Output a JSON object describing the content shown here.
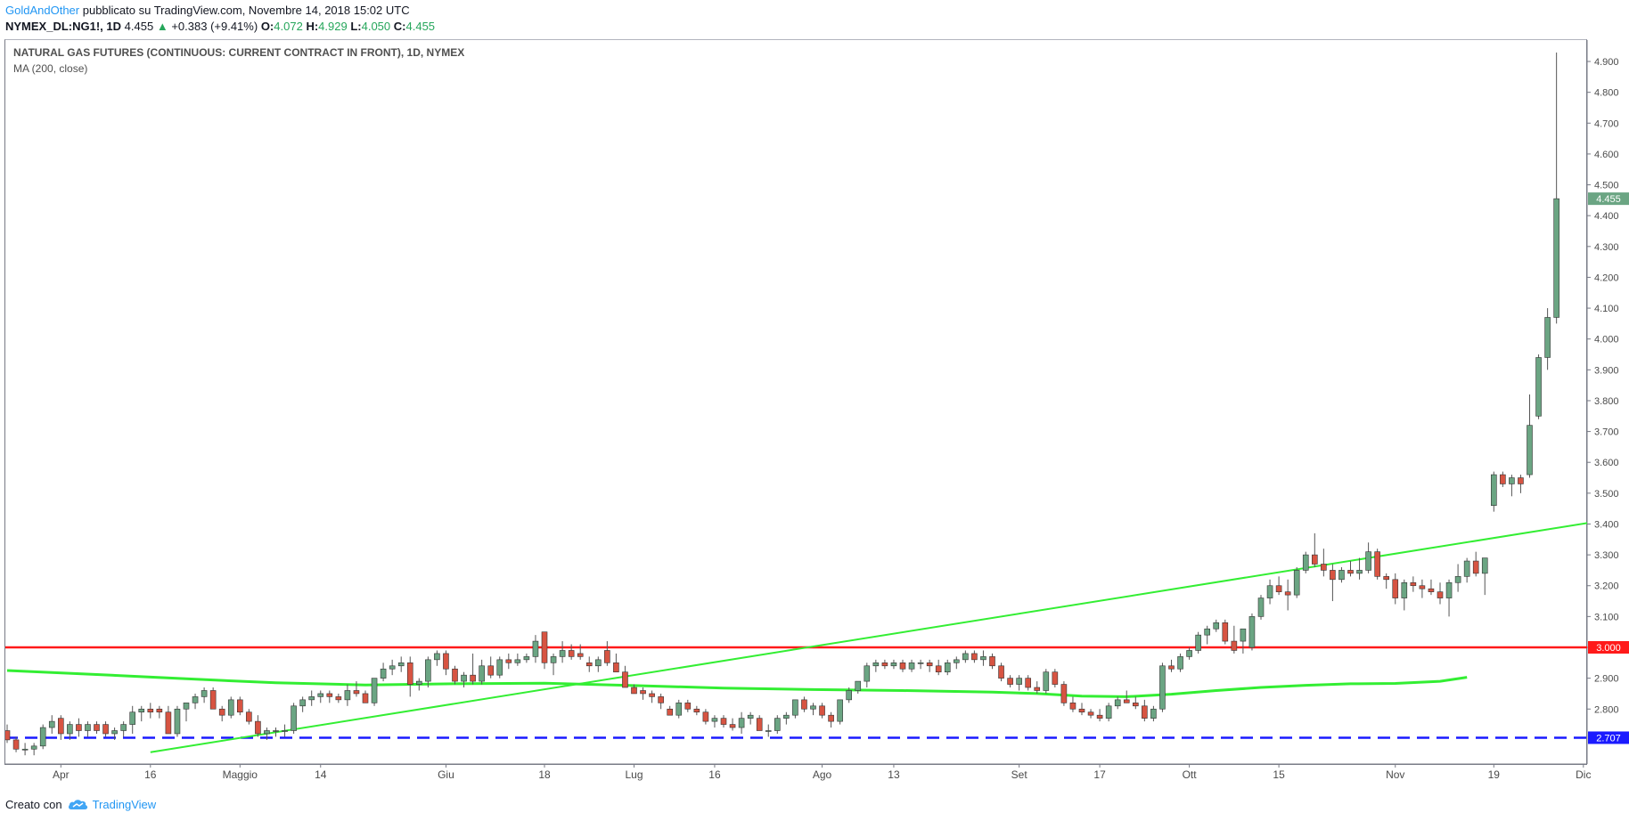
{
  "header": {
    "author": "GoldAndOther",
    "published_text": "pubblicato su TradingView.com, Novembre 14, 2018 15:02 UTC",
    "symbol": "NYMEX_DL:NG1!, 1D",
    "last": "4.455",
    "change": "+0.383 (+9.41%)",
    "o_label": "O:",
    "o_value": "4.072",
    "h_label": "H:",
    "h_value": "4.929",
    "l_label": "L:",
    "l_value": "4.050",
    "c_label": "C:",
    "c_value": "4.455"
  },
  "legend": {
    "title": "NATURAL GAS FUTURES (CONTINUOUS: CURRENT CONTRACT IN FRONT), 1D, NYMEX",
    "indicator": "MA (200, close)"
  },
  "footer": {
    "created_with": "Creato con",
    "brand": "TradingView"
  },
  "colors": {
    "up": "#6ba583",
    "down": "#d75442",
    "ma": "#33ee33",
    "trendline": "#33ee33",
    "resistance": "#ff1a1a",
    "support": "#1a1aff",
    "last_price_badge": "#6ba583",
    "axis_text": "#4a4a4a"
  },
  "chart_data": {
    "type": "candlestick",
    "title": "NATURAL GAS FUTURES (CONTINUOUS: CURRENT CONTRACT IN FRONT), 1D, NYMEX",
    "ylim": [
      2.65,
      4.95
    ],
    "y_ticks": [
      "2.800",
      "2.900",
      "3.000",
      "3.100",
      "3.200",
      "3.300",
      "3.400",
      "3.500",
      "3.600",
      "3.700",
      "3.800",
      "3.900",
      "4.000",
      "4.100",
      "4.200",
      "4.300",
      "4.400",
      "4.500",
      "4.600",
      "4.700",
      "4.800",
      "4.900"
    ],
    "x_ticks": [
      {
        "label": "Apr",
        "index": 6
      },
      {
        "label": "16",
        "index": 16
      },
      {
        "label": "Maggio",
        "index": 26
      },
      {
        "label": "14",
        "index": 35
      },
      {
        "label": "Giu",
        "index": 49
      },
      {
        "label": "18",
        "index": 60
      },
      {
        "label": "Lug",
        "index": 70
      },
      {
        "label": "16",
        "index": 79
      },
      {
        "label": "Ago",
        "index": 91
      },
      {
        "label": "13",
        "index": 99
      },
      {
        "label": "Set",
        "index": 113
      },
      {
        "label": "17",
        "index": 122
      },
      {
        "label": "Ott",
        "index": 132
      },
      {
        "label": "15",
        "index": 142
      },
      {
        "label": "Nov",
        "index": 155
      },
      {
        "label": "19",
        "index": 166
      },
      {
        "label": "Dic",
        "index": 176
      }
    ],
    "horizontal_lines": [
      {
        "price": 3.0,
        "label": "3.000",
        "style": "solid",
        "color": "#ff1a1a"
      },
      {
        "price": 2.707,
        "label": "2.707",
        "style": "dashed",
        "color": "#1a1aff"
      }
    ],
    "last_price": {
      "price": 4.455,
      "label": "4.455"
    },
    "trendline": {
      "from": {
        "index": 16,
        "price": 2.66
      },
      "to": {
        "index": 179,
        "price": 3.415
      }
    },
    "ma_200": [
      [
        0,
        2.925
      ],
      [
        10,
        2.912
      ],
      [
        20,
        2.898
      ],
      [
        30,
        2.885
      ],
      [
        40,
        2.878
      ],
      [
        50,
        2.882
      ],
      [
        60,
        2.884
      ],
      [
        70,
        2.876
      ],
      [
        80,
        2.868
      ],
      [
        90,
        2.863
      ],
      [
        100,
        2.86
      ],
      [
        110,
        2.855
      ],
      [
        115,
        2.85
      ],
      [
        120,
        2.842
      ],
      [
        125,
        2.84
      ],
      [
        130,
        2.848
      ],
      [
        135,
        2.86
      ],
      [
        140,
        2.87
      ],
      [
        145,
        2.877
      ],
      [
        150,
        2.882
      ],
      [
        155,
        2.883
      ],
      [
        160,
        2.89
      ],
      [
        163,
        2.903
      ]
    ],
    "ohlc": [
      [
        2.73,
        2.75,
        2.69,
        2.7
      ],
      [
        2.7,
        2.71,
        2.66,
        2.67
      ],
      [
        2.67,
        2.69,
        2.65,
        2.67
      ],
      [
        2.67,
        2.69,
        2.65,
        2.68
      ],
      [
        2.68,
        2.75,
        2.67,
        2.74
      ],
      [
        2.74,
        2.78,
        2.72,
        2.76
      ],
      [
        2.77,
        2.78,
        2.7,
        2.72
      ],
      [
        2.72,
        2.76,
        2.7,
        2.75
      ],
      [
        2.75,
        2.77,
        2.71,
        2.73
      ],
      [
        2.73,
        2.76,
        2.71,
        2.75
      ],
      [
        2.75,
        2.76,
        2.72,
        2.73
      ],
      [
        2.75,
        2.76,
        2.71,
        2.72
      ],
      [
        2.72,
        2.74,
        2.7,
        2.73
      ],
      [
        2.73,
        2.76,
        2.71,
        2.75
      ],
      [
        2.75,
        2.81,
        2.72,
        2.79
      ],
      [
        2.79,
        2.81,
        2.76,
        2.8
      ],
      [
        2.8,
        2.82,
        2.77,
        2.79
      ],
      [
        2.8,
        2.81,
        2.77,
        2.79
      ],
      [
        2.79,
        2.81,
        2.72,
        2.72
      ],
      [
        2.72,
        2.81,
        2.71,
        2.8
      ],
      [
        2.8,
        2.82,
        2.76,
        2.82
      ],
      [
        2.82,
        2.85,
        2.8,
        2.84
      ],
      [
        2.84,
        2.87,
        2.82,
        2.86
      ],
      [
        2.86,
        2.87,
        2.8,
        2.8
      ],
      [
        2.8,
        2.81,
        2.76,
        2.78
      ],
      [
        2.78,
        2.84,
        2.77,
        2.83
      ],
      [
        2.83,
        2.84,
        2.78,
        2.79
      ],
      [
        2.79,
        2.8,
        2.75,
        2.76
      ],
      [
        2.76,
        2.78,
        2.71,
        2.72
      ],
      [
        2.72,
        2.74,
        2.7,
        2.73
      ],
      [
        2.73,
        2.74,
        2.71,
        2.73
      ],
      [
        2.73,
        2.75,
        2.71,
        2.73
      ],
      [
        2.73,
        2.82,
        2.72,
        2.81
      ],
      [
        2.81,
        2.84,
        2.79,
        2.83
      ],
      [
        2.83,
        2.86,
        2.81,
        2.84
      ],
      [
        2.84,
        2.86,
        2.82,
        2.85
      ],
      [
        2.85,
        2.86,
        2.82,
        2.84
      ],
      [
        2.84,
        2.85,
        2.82,
        2.83
      ],
      [
        2.83,
        2.88,
        2.81,
        2.86
      ],
      [
        2.86,
        2.89,
        2.84,
        2.85
      ],
      [
        2.85,
        2.86,
        2.82,
        2.82
      ],
      [
        2.82,
        2.9,
        2.81,
        2.9
      ],
      [
        2.9,
        2.95,
        2.89,
        2.93
      ],
      [
        2.93,
        2.96,
        2.91,
        2.94
      ],
      [
        2.94,
        2.97,
        2.92,
        2.95
      ],
      [
        2.95,
        2.97,
        2.84,
        2.88
      ],
      [
        2.88,
        2.9,
        2.86,
        2.89
      ],
      [
        2.89,
        2.97,
        2.87,
        2.96
      ],
      [
        2.96,
        2.99,
        2.94,
        2.98
      ],
      [
        2.98,
        2.99,
        2.91,
        2.93
      ],
      [
        2.93,
        2.94,
        2.88,
        2.89
      ],
      [
        2.89,
        2.92,
        2.87,
        2.91
      ],
      [
        2.91,
        2.98,
        2.88,
        2.89
      ],
      [
        2.89,
        2.96,
        2.88,
        2.94
      ],
      [
        2.94,
        2.97,
        2.9,
        2.91
      ],
      [
        2.91,
        2.97,
        2.9,
        2.96
      ],
      [
        2.96,
        2.98,
        2.93,
        2.95
      ],
      [
        2.95,
        2.98,
        2.94,
        2.96
      ],
      [
        2.96,
        2.98,
        2.95,
        2.97
      ],
      [
        2.97,
        3.04,
        2.95,
        3.02
      ],
      [
        3.05,
        3.05,
        2.93,
        2.95
      ],
      [
        2.95,
        2.98,
        2.91,
        2.97
      ],
      [
        2.97,
        3.02,
        2.95,
        2.99
      ],
      [
        2.99,
        3.01,
        2.96,
        2.97
      ],
      [
        2.98,
        3.01,
        2.96,
        2.97
      ],
      [
        2.95,
        2.97,
        2.92,
        2.94
      ],
      [
        2.94,
        2.97,
        2.92,
        2.96
      ],
      [
        2.99,
        3.02,
        2.94,
        2.95
      ],
      [
        2.95,
        2.98,
        2.93,
        2.92
      ],
      [
        2.92,
        2.94,
        2.87,
        2.87
      ],
      [
        2.87,
        2.88,
        2.85,
        2.85
      ],
      [
        2.86,
        2.87,
        2.83,
        2.85
      ],
      [
        2.85,
        2.86,
        2.82,
        2.84
      ],
      [
        2.84,
        2.85,
        2.8,
        2.82
      ],
      [
        2.8,
        2.81,
        2.78,
        2.78
      ],
      [
        2.78,
        2.83,
        2.77,
        2.82
      ],
      [
        2.82,
        2.83,
        2.79,
        2.8
      ],
      [
        2.8,
        2.81,
        2.78,
        2.79
      ],
      [
        2.79,
        2.8,
        2.75,
        2.76
      ],
      [
        2.76,
        2.78,
        2.74,
        2.77
      ],
      [
        2.77,
        2.78,
        2.74,
        2.75
      ],
      [
        2.75,
        2.77,
        2.73,
        2.74
      ],
      [
        2.74,
        2.79,
        2.72,
        2.77
      ],
      [
        2.77,
        2.79,
        2.75,
        2.78
      ],
      [
        2.77,
        2.78,
        2.73,
        2.73
      ],
      [
        2.73,
        2.75,
        2.71,
        2.73
      ],
      [
        2.73,
        2.78,
        2.72,
        2.77
      ],
      [
        2.77,
        2.79,
        2.75,
        2.78
      ],
      [
        2.78,
        2.83,
        2.77,
        2.83
      ],
      [
        2.83,
        2.84,
        2.79,
        2.8
      ],
      [
        2.8,
        2.82,
        2.78,
        2.81
      ],
      [
        2.81,
        2.82,
        2.77,
        2.78
      ],
      [
        2.78,
        2.79,
        2.74,
        2.76
      ],
      [
        2.76,
        2.83,
        2.75,
        2.83
      ],
      [
        2.83,
        2.87,
        2.82,
        2.86
      ],
      [
        2.86,
        2.89,
        2.85,
        2.89
      ],
      [
        2.89,
        2.95,
        2.87,
        2.94
      ],
      [
        2.94,
        2.96,
        2.92,
        2.95
      ],
      [
        2.95,
        2.96,
        2.93,
        2.94
      ],
      [
        2.94,
        2.96,
        2.93,
        2.95
      ],
      [
        2.95,
        2.96,
        2.92,
        2.93
      ],
      [
        2.93,
        2.96,
        2.92,
        2.95
      ],
      [
        2.95,
        2.96,
        2.93,
        2.95
      ],
      [
        2.95,
        2.96,
        2.92,
        2.94
      ],
      [
        2.94,
        2.96,
        2.91,
        2.92
      ],
      [
        2.92,
        2.96,
        2.91,
        2.95
      ],
      [
        2.95,
        2.97,
        2.93,
        2.96
      ],
      [
        2.96,
        2.99,
        2.95,
        2.98
      ],
      [
        2.98,
        2.99,
        2.95,
        2.96
      ],
      [
        2.96,
        2.99,
        2.94,
        2.97
      ],
      [
        2.97,
        2.98,
        2.93,
        2.94
      ],
      [
        2.94,
        2.95,
        2.89,
        2.9
      ],
      [
        2.9,
        2.91,
        2.87,
        2.88
      ],
      [
        2.88,
        2.91,
        2.86,
        2.9
      ],
      [
        2.9,
        2.91,
        2.86,
        2.87
      ],
      [
        2.87,
        2.89,
        2.85,
        2.86
      ],
      [
        2.86,
        2.93,
        2.85,
        2.92
      ],
      [
        2.92,
        2.93,
        2.87,
        2.88
      ],
      [
        2.88,
        2.89,
        2.81,
        2.82
      ],
      [
        2.82,
        2.84,
        2.79,
        2.8
      ],
      [
        2.8,
        2.82,
        2.78,
        2.79
      ],
      [
        2.79,
        2.8,
        2.77,
        2.78
      ],
      [
        2.78,
        2.8,
        2.76,
        2.77
      ],
      [
        2.77,
        2.82,
        2.76,
        2.81
      ],
      [
        2.81,
        2.84,
        2.8,
        2.83
      ],
      [
        2.83,
        2.86,
        2.82,
        2.82
      ],
      [
        2.82,
        2.84,
        2.8,
        2.81
      ],
      [
        2.81,
        2.83,
        2.76,
        2.77
      ],
      [
        2.77,
        2.81,
        2.76,
        2.8
      ],
      [
        2.8,
        2.95,
        2.79,
        2.94
      ],
      [
        2.94,
        2.96,
        2.92,
        2.93
      ],
      [
        2.93,
        2.98,
        2.92,
        2.97
      ],
      [
        2.97,
        3.0,
        2.96,
        2.99
      ],
      [
        2.99,
        3.05,
        2.98,
        3.04
      ],
      [
        3.04,
        3.07,
        3.01,
        3.06
      ],
      [
        3.06,
        3.09,
        3.05,
        3.08
      ],
      [
        3.08,
        3.09,
        3.01,
        3.02
      ],
      [
        3.02,
        3.07,
        2.98,
        2.99
      ],
      [
        3.02,
        3.06,
        2.98,
        3.06
      ],
      [
        3.0,
        3.11,
        2.99,
        3.1
      ],
      [
        3.1,
        3.17,
        3.09,
        3.16
      ],
      [
        3.16,
        3.22,
        3.14,
        3.2
      ],
      [
        3.2,
        3.23,
        3.17,
        3.18
      ],
      [
        3.18,
        3.22,
        3.12,
        3.17
      ],
      [
        3.17,
        3.26,
        3.16,
        3.25
      ],
      [
        3.25,
        3.31,
        3.24,
        3.3
      ],
      [
        3.3,
        3.37,
        3.26,
        3.27
      ],
      [
        3.27,
        3.32,
        3.23,
        3.25
      ],
      [
        3.25,
        3.27,
        3.15,
        3.22
      ],
      [
        3.22,
        3.26,
        3.21,
        3.25
      ],
      [
        3.25,
        3.28,
        3.23,
        3.24
      ],
      [
        3.24,
        3.29,
        3.22,
        3.25
      ],
      [
        3.25,
        3.34,
        3.24,
        3.31
      ],
      [
        3.31,
        3.32,
        3.22,
        3.23
      ],
      [
        3.23,
        3.24,
        3.19,
        3.22
      ],
      [
        3.22,
        3.24,
        3.14,
        3.16
      ],
      [
        3.16,
        3.22,
        3.12,
        3.21
      ],
      [
        3.21,
        3.23,
        3.18,
        3.2
      ],
      [
        3.2,
        3.22,
        3.16,
        3.19
      ],
      [
        3.19,
        3.22,
        3.17,
        3.18
      ],
      [
        3.18,
        3.21,
        3.14,
        3.16
      ],
      [
        3.16,
        3.22,
        3.1,
        3.21
      ],
      [
        3.21,
        3.27,
        3.18,
        3.23
      ],
      [
        3.23,
        3.29,
        3.21,
        3.28
      ],
      [
        3.28,
        3.31,
        3.23,
        3.24
      ],
      [
        3.24,
        3.29,
        3.17,
        3.29
      ]
    ],
    "ohlc_spike": [
      [
        3.46,
        3.57,
        3.44,
        3.56
      ],
      [
        3.56,
        3.57,
        3.52,
        3.53
      ],
      [
        3.53,
        3.56,
        3.49,
        3.55
      ],
      [
        3.55,
        3.56,
        3.5,
        3.53
      ],
      [
        3.56,
        3.82,
        3.55,
        3.72
      ],
      [
        3.75,
        3.95,
        3.74,
        3.94
      ],
      [
        3.94,
        4.1,
        3.9,
        4.07
      ],
      [
        4.07,
        4.929,
        4.05,
        4.455
      ]
    ]
  }
}
